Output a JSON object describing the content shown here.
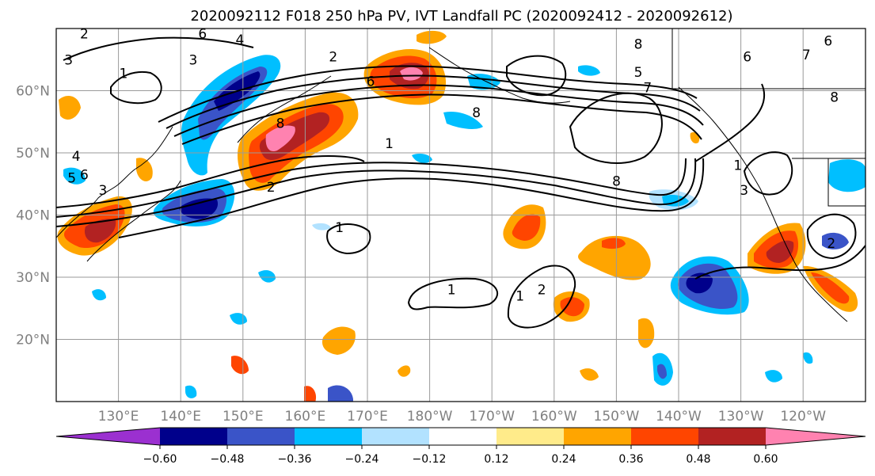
{
  "title": "2020092112 F018 250 hPa PV, IVT Landfall PC (2020092412 - 2020092612)",
  "map": {
    "lon_labels": [
      "130°E",
      "140°E",
      "150°E",
      "160°E",
      "170°E",
      "180°W",
      "170°W",
      "160°W",
      "150°W",
      "140°W",
      "130°W",
      "120°W"
    ],
    "lat_labels": [
      "20°N",
      "30°N",
      "40°N",
      "50°N",
      "60°N"
    ],
    "lon_range": [
      120,
      250
    ],
    "lat_range": [
      10,
      70
    ],
    "grid": true,
    "coastline_color": "#000000"
  },
  "colorbar": {
    "colors": [
      "#9b30d0",
      "#00008b",
      "#3a54c8",
      "#00bfff",
      "#b2e2ff",
      "#ffffff",
      "#ffeb8a",
      "#ffa500",
      "#ff4500",
      "#b22222",
      "#ff82b0"
    ],
    "tick_labels": [
      "−0.60",
      "−0.48",
      "−0.36",
      "−0.24",
      "−0.12",
      "0.12",
      "0.24",
      "0.36",
      "0.48",
      "0.60"
    ],
    "extend": "both"
  },
  "contour_labels": [
    {
      "text": "2",
      "lon": 124.5,
      "lat": 69.2
    },
    {
      "text": "6",
      "lon": 143.5,
      "lat": 69.2
    },
    {
      "text": "4",
      "lon": 149.5,
      "lat": 68.2
    },
    {
      "text": "3",
      "lon": 122.0,
      "lat": 65.0
    },
    {
      "text": "3",
      "lon": 142.0,
      "lat": 65.0
    },
    {
      "text": "1",
      "lon": 130.8,
      "lat": 62.8
    },
    {
      "text": "2",
      "lon": 164.5,
      "lat": 65.5
    },
    {
      "text": "6",
      "lon": 170.5,
      "lat": 61.5
    },
    {
      "text": "8",
      "lon": 156.0,
      "lat": 54.8
    },
    {
      "text": "4",
      "lon": 123.2,
      "lat": 49.5
    },
    {
      "text": "5",
      "lon": 122.5,
      "lat": 46.0
    },
    {
      "text": "6",
      "lon": 124.5,
      "lat": 46.5
    },
    {
      "text": "3",
      "lon": 127.5,
      "lat": 44.0
    },
    {
      "text": "1",
      "lon": 173.5,
      "lat": 51.5
    },
    {
      "text": "2",
      "lon": 154.5,
      "lat": 44.5
    },
    {
      "text": "8",
      "lon": 187.5,
      "lat": 56.5
    },
    {
      "text": "8",
      "lon": 213.5,
      "lat": 67.5
    },
    {
      "text": "5",
      "lon": 213.5,
      "lat": 63.0
    },
    {
      "text": "7",
      "lon": 215.0,
      "lat": 60.5
    },
    {
      "text": "6",
      "lon": 231.0,
      "lat": 65.5
    },
    {
      "text": "7",
      "lon": 240.5,
      "lat": 65.8
    },
    {
      "text": "8",
      "lon": 245.0,
      "lat": 59.0
    },
    {
      "text": "6",
      "lon": 244.0,
      "lat": 68.0
    },
    {
      "text": "8",
      "lon": 210.0,
      "lat": 45.5
    },
    {
      "text": "1",
      "lon": 229.5,
      "lat": 48.0
    },
    {
      "text": "3",
      "lon": 230.5,
      "lat": 44.0
    },
    {
      "text": "2",
      "lon": 244.5,
      "lat": 35.5
    },
    {
      "text": "1",
      "lon": 165.5,
      "lat": 38.0
    },
    {
      "text": "1",
      "lon": 183.5,
      "lat": 28.0
    },
    {
      "text": "1",
      "lon": 194.5,
      "lat": 27.0
    },
    {
      "text": "2",
      "lon": 198.0,
      "lat": 28.0
    }
  ]
}
